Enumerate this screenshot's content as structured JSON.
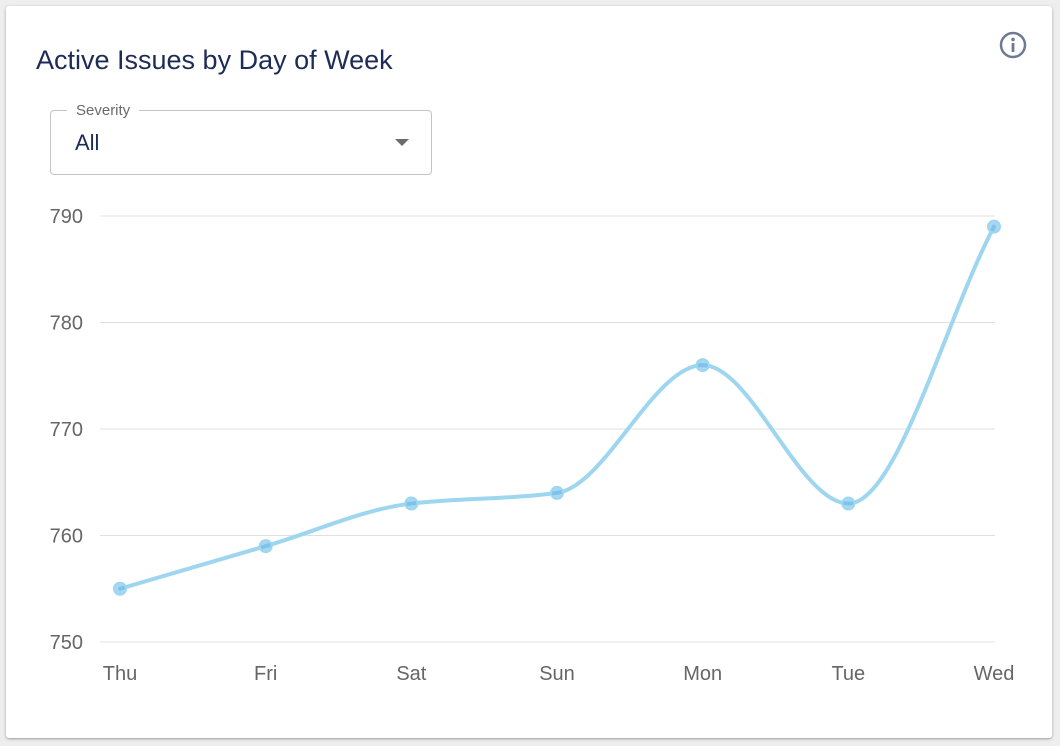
{
  "card": {
    "title": "Active Issues by Day of Week",
    "info_icon": "info-icon"
  },
  "filter": {
    "label": "Severity",
    "value": "All",
    "arrow_icon": "dropdown-arrow-icon"
  },
  "colors": {
    "title": "#1d2b57",
    "line": "#9ed6f0",
    "point": "#62b7e8",
    "grid": "#e0e0e0",
    "tick": "#666666"
  },
  "chart_data": {
    "type": "line",
    "title": "Active Issues by Day of Week",
    "xlabel": "",
    "ylabel": "",
    "categories": [
      "Thu",
      "Fri",
      "Sat",
      "Sun",
      "Mon",
      "Tue",
      "Wed"
    ],
    "series": [
      {
        "values": [
          755,
          759,
          763,
          764,
          776,
          763,
          789
        ]
      }
    ],
    "ylim": [
      750,
      790
    ],
    "yticks": [
      750,
      760,
      770,
      780,
      790
    ],
    "grid": true,
    "smooth": true
  }
}
